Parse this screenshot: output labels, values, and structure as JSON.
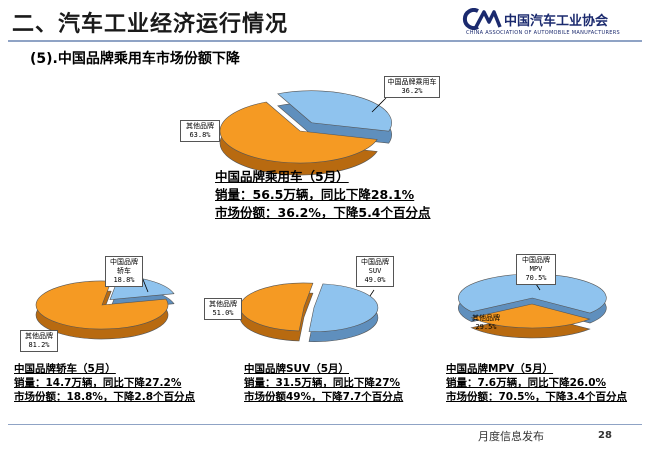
{
  "header": {
    "title": "二、汽车工业经济运行情况",
    "logo_text": "中国汽车工业协会",
    "logo_sub": "CHINA ASSOCIATION OF AUTOMOBILE MANUFACTURERS"
  },
  "subtitle": "(5).中国品牌乘用车市场份额下降",
  "colors": {
    "brand": "#8fc3ee",
    "other": "#f59a23",
    "line": "#8fa3c5"
  },
  "chart_data": [
    {
      "type": "pie",
      "categories": [
        "中国品牌乘用车",
        "其他品牌"
      ],
      "values": [
        36.2,
        63.8
      ],
      "value_labels": [
        "36.2%",
        "63.8%"
      ],
      "caption": [
        "中国品牌乘用车（5月）",
        "销量：56.5万辆，同比下降28.1%",
        "市场份额：36.2%，下降5.4个百分点"
      ]
    },
    {
      "type": "pie",
      "categories": [
        "中国品牌轿车",
        "其他品牌"
      ],
      "values": [
        18.8,
        81.2
      ],
      "value_labels": [
        "18.8%",
        "81.2%"
      ],
      "caption": [
        "中国品牌轿车（5月）",
        "销量：14.7万辆，同比下降27.2%",
        "市场份额：18.8%，下降2.8个百分点"
      ]
    },
    {
      "type": "pie",
      "categories": [
        "中国品牌SUV",
        "其他品牌"
      ],
      "values": [
        49.0,
        51.0
      ],
      "value_labels": [
        "49.0%",
        "51.0%"
      ],
      "caption": [
        "中国品牌SUV（5月）",
        "销量：31.5万辆，同比下降27%",
        "市场份额49%，下降7.7个百分点"
      ]
    },
    {
      "type": "pie",
      "categories": [
        "中国品牌MPV",
        "其他品牌"
      ],
      "values": [
        70.5,
        29.5
      ],
      "value_labels": [
        "70.5%",
        "29.5%"
      ],
      "caption": [
        "中国品牌MPV（5月）",
        "销量：7.6万辆，同比下降26.0%",
        "市场份额：70.5%，下降3.4个百分点"
      ]
    }
  ],
  "footer": {
    "text": "月度信息发布",
    "page": "28"
  }
}
